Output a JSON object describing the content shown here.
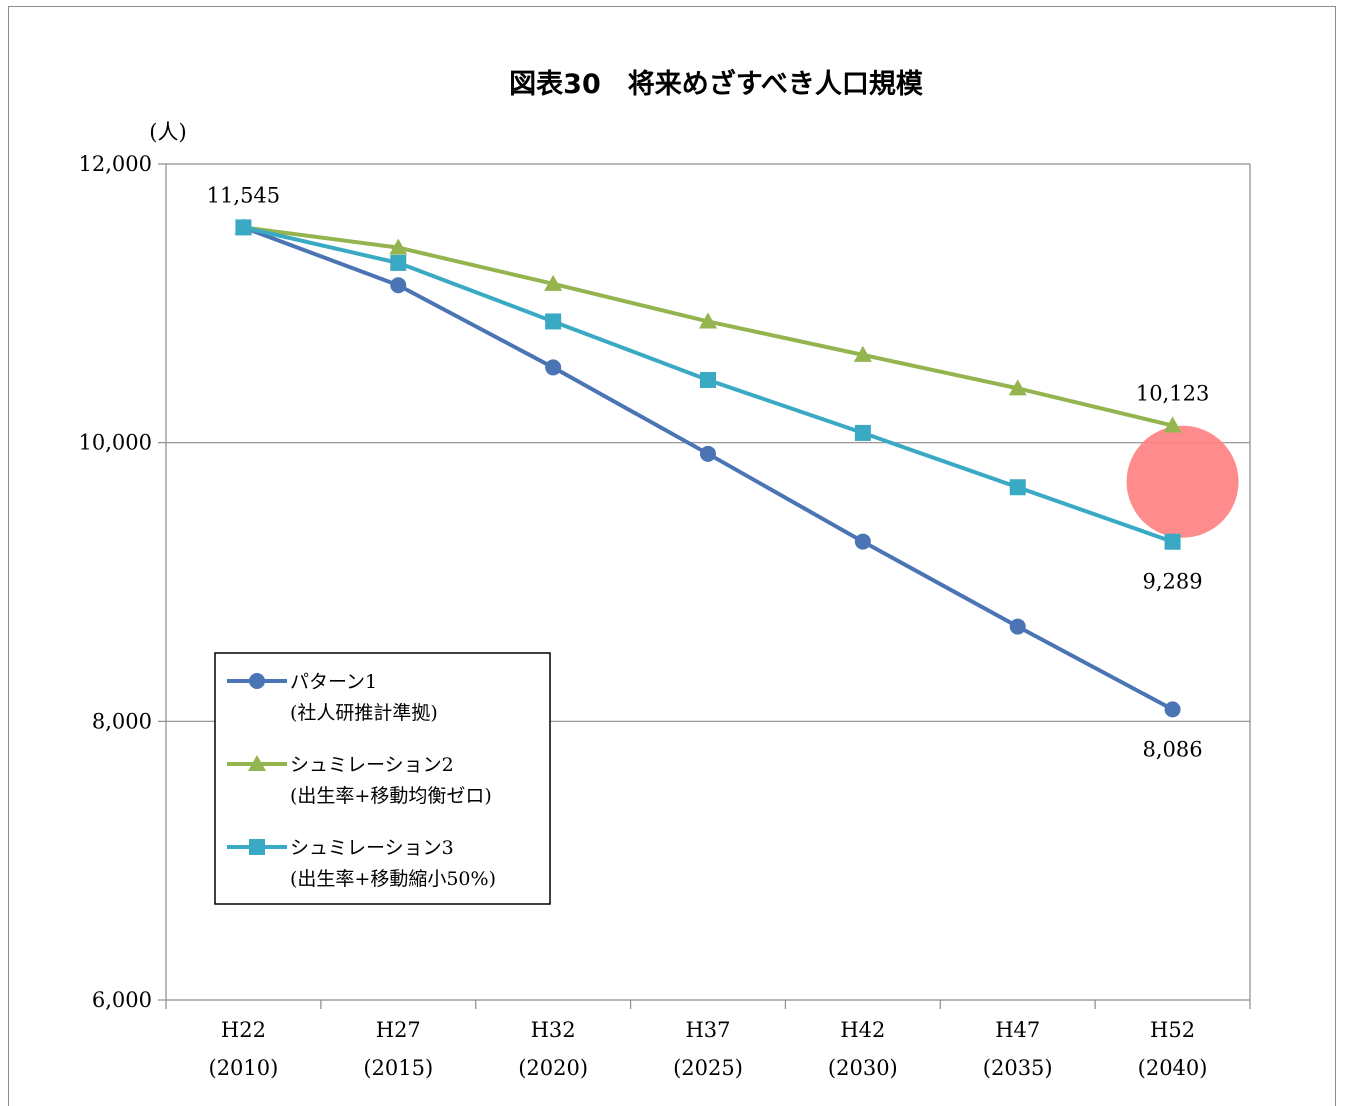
{
  "chart_data": {
    "type": "line",
    "title": "図表30　将来めざすべき人口規模",
    "ylabel": "(人)",
    "xlabel": "",
    "ylim": [
      6000,
      12000
    ],
    "yticks": [
      6000,
      8000,
      10000,
      12000
    ],
    "ytick_labels": [
      "6,000",
      "8,000",
      "10,000",
      "12,000"
    ],
    "categories": [
      "H22",
      "H27",
      "H32",
      "H37",
      "H42",
      "H47",
      "H52"
    ],
    "category_years": [
      "(2010)",
      "(2015)",
      "(2020)",
      "(2025)",
      "(2030)",
      "(2035)",
      "(2040)"
    ],
    "grid": "horizontal",
    "legend_placement": "lower-left",
    "series": [
      {
        "name": "パターン1",
        "name_line2": "(社人研推計準拠)",
        "color": "#4a74b4",
        "marker": "circle",
        "values": [
          11545,
          11130,
          10540,
          9920,
          9290,
          8680,
          8086
        ]
      },
      {
        "name": "シュミレーション2",
        "name_line2": "(出生率+移動均衡ゼロ)",
        "color": "#93b44f",
        "marker": "triangle",
        "values": [
          11545,
          11400,
          11140,
          10870,
          10630,
          10390,
          10123
        ]
      },
      {
        "name": "シュミレーション3",
        "name_line2": "(出生率+移動縮小50%)",
        "color": "#3aa9c4",
        "marker": "square",
        "values": [
          11545,
          11290,
          10870,
          10450,
          10070,
          9680,
          9289
        ]
      }
    ],
    "annotations": [
      {
        "text": "11,545",
        "series": 1,
        "index": 0,
        "position": "above"
      },
      {
        "text": "10,123",
        "series": 1,
        "index": 6,
        "position": "above"
      },
      {
        "text": "9,289",
        "series": 2,
        "index": 6,
        "position": "below"
      },
      {
        "text": "8,086",
        "series": 0,
        "index": 6,
        "position": "below"
      }
    ],
    "highlight": {
      "series": 2,
      "index": 6,
      "color": "#ff8080",
      "shape": "circle"
    }
  }
}
